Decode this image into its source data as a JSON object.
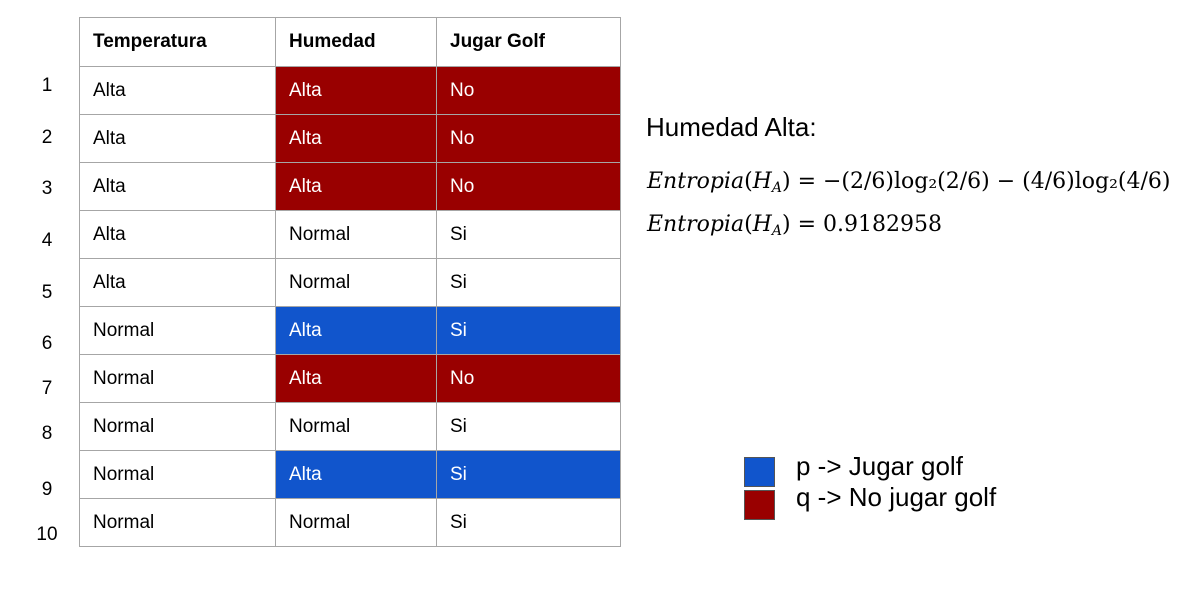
{
  "table": {
    "headers": [
      "Temperatura",
      "Humedad",
      "Jugar Golf"
    ],
    "rows": [
      {
        "index": "1",
        "temperatura": "Alta",
        "humedad": "Alta",
        "jugar": "No"
      },
      {
        "index": "2",
        "temperatura": "Alta",
        "humedad": "Alta",
        "jugar": "No"
      },
      {
        "index": "3",
        "temperatura": "Alta",
        "humedad": "Alta",
        "jugar": "No"
      },
      {
        "index": "4",
        "temperatura": "Alta",
        "humedad": "Normal",
        "jugar": "Si"
      },
      {
        "index": "5",
        "temperatura": "Alta",
        "humedad": "Normal",
        "jugar": "Si"
      },
      {
        "index": "6",
        "temperatura": "Normal",
        "humedad": "Alta",
        "jugar": "Si"
      },
      {
        "index": "7",
        "temperatura": "Normal",
        "humedad": "Alta",
        "jugar": "No"
      },
      {
        "index": "8",
        "temperatura": "Normal",
        "humedad": "Normal",
        "jugar": "Si"
      },
      {
        "index": "9",
        "temperatura": "Normal",
        "humedad": "Alta",
        "jugar": "Si"
      },
      {
        "index": "10",
        "temperatura": "Normal",
        "humedad": "Normal",
        "jugar": "Si"
      }
    ]
  },
  "heading": "Humedad Alta:",
  "formula": {
    "lhs_name": "Entropia",
    "lhs_var": "H",
    "lhs_sub": "A",
    "line1_rhs": "= −(2/6)log₂(2/6) − (4/6)log₂(4/6)",
    "line2_rhs": "= 0.9182958"
  },
  "legend": {
    "p_label": "p -> Jugar golf",
    "q_label": "q -> No jugar golf"
  },
  "colors": {
    "q_red": "#990000",
    "p_blue": "#1155cc",
    "border": "#a6a6a6"
  }
}
